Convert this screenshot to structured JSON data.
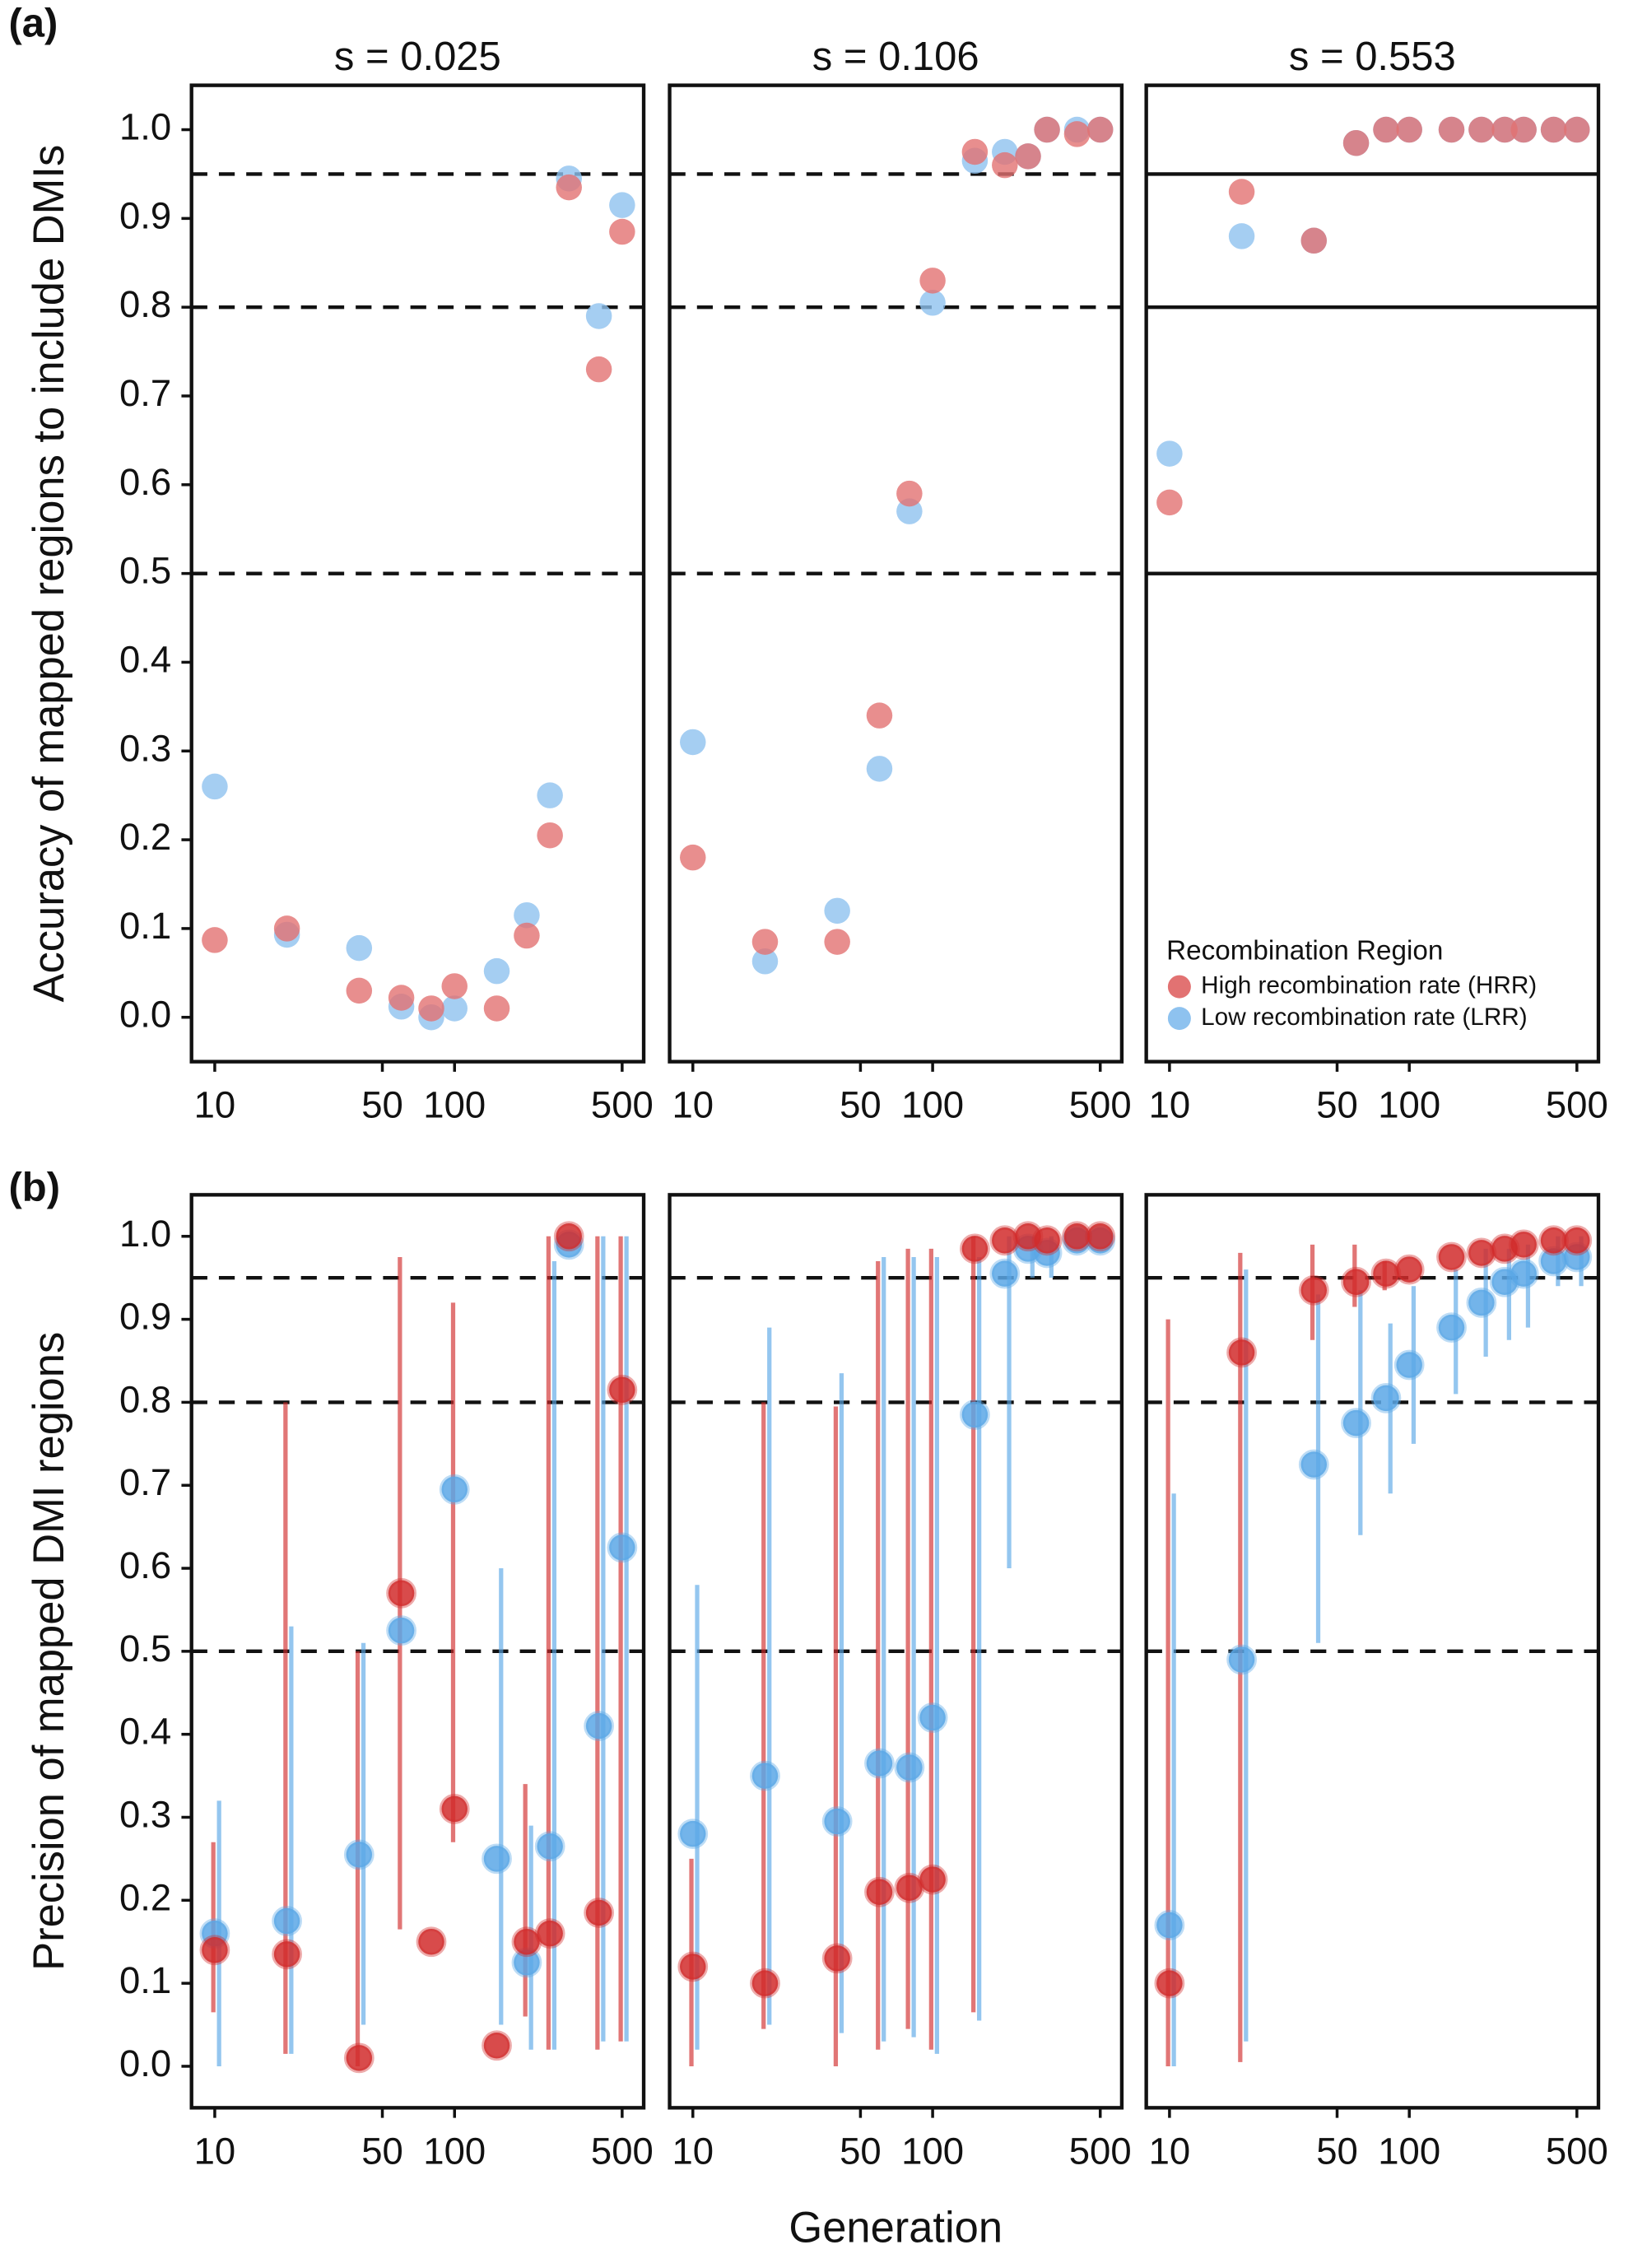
{
  "panel_labels": [
    "(a)",
    "(b)"
  ],
  "xlabel": "Generation",
  "chart_data": [
    {
      "type": "scatter",
      "title": "s = 0.025",
      "ylabel": "Accuracy of mapped regions to include DMIs",
      "log_x": true,
      "xlim": [
        8,
        615
      ],
      "ylim": [
        -0.05,
        1.05
      ],
      "xticks": [
        10,
        50,
        100,
        500
      ],
      "yticks": [
        {
          "value": 0,
          "label": "0.0"
        },
        0.1,
        0.2,
        0.3,
        0.4,
        0.5,
        0.6,
        0.7,
        0.8,
        0.9,
        {
          "value": 1,
          "label": "1.0"
        }
      ],
      "reference_lines": [
        0.95,
        0.8,
        0.5
      ],
      "reference_line_style": "dashed",
      "x": [
        10,
        20,
        40,
        60,
        80,
        100,
        150,
        200,
        250,
        300,
        400,
        500
      ],
      "series": [
        {
          "color": "#8ec2ef",
          "values": [
            0.26,
            0.093,
            0.078,
            0.012,
            0.0,
            0.01,
            0.052,
            0.115,
            0.25,
            0.945,
            0.79,
            0.915
          ]
        },
        {
          "color": "#e27272",
          "values": [
            0.087,
            0.1,
            0.03,
            0.022,
            0.01,
            0.035,
            0.01,
            0.092,
            0.205,
            0.935,
            0.73,
            0.885
          ]
        }
      ]
    },
    {
      "type": "scatter",
      "title": "s = 0.106",
      "log_x": true,
      "xlim": [
        8,
        615
      ],
      "ylim": [
        -0.05,
        1.05
      ],
      "xticks": [
        10,
        50,
        100,
        500
      ],
      "reference_lines": [
        0.95,
        0.8,
        0.5
      ],
      "reference_line_style": "dashed",
      "x": [
        10,
        20,
        40,
        60,
        80,
        100,
        150,
        200,
        250,
        300,
        400,
        500
      ],
      "series": [
        {
          "color": "#8ec2ef",
          "values": [
            0.31,
            0.063,
            0.12,
            0.28,
            0.57,
            0.805,
            0.965,
            0.975,
            0.97,
            1.0,
            1.0,
            1.0
          ]
        },
        {
          "color": "#e27272",
          "values": [
            0.18,
            0.085,
            0.085,
            0.34,
            0.59,
            0.83,
            0.975,
            0.96,
            0.97,
            1.0,
            0.995,
            1.0
          ]
        }
      ]
    },
    {
      "type": "scatter",
      "title": "s = 0.553",
      "log_x": true,
      "xlim": [
        8,
        615
      ],
      "ylim": [
        -0.05,
        1.05
      ],
      "xticks": [
        10,
        50,
        100,
        500
      ],
      "reference_lines": [
        0.95,
        0.8,
        0.5
      ],
      "reference_line_style": "solid",
      "legend": {
        "title": "Recombination Region",
        "position": "lower right"
      },
      "x": [
        10,
        20,
        40,
        60,
        80,
        100,
        150,
        200,
        250,
        300,
        400,
        500
      ],
      "series": [
        {
          "name": "Low recombination rate (LRR)",
          "color": "#8ec2ef",
          "values": [
            0.635,
            0.88,
            0.875,
            0.985,
            1.0,
            1.0,
            1.0,
            1.0,
            1.0,
            1.0,
            1.0,
            1.0
          ]
        },
        {
          "name": "High recombination rate (HRR)",
          "color": "#e27272",
          "values": [
            0.58,
            0.93,
            0.875,
            0.985,
            1.0,
            1.0,
            1.0,
            1.0,
            1.0,
            1.0,
            1.0,
            1.0
          ]
        }
      ]
    },
    {
      "type": "errorbar",
      "ylabel": "Precision of mapped DMI regions",
      "log_x": true,
      "xlim": [
        8,
        615
      ],
      "ylim": [
        -0.05,
        1.05
      ],
      "xticks": [
        10,
        50,
        100,
        500
      ],
      "yticks": [
        {
          "value": 0,
          "label": "0.0"
        },
        0.1,
        0.2,
        0.3,
        0.4,
        0.5,
        0.6,
        0.7,
        0.8,
        0.9,
        {
          "value": 1,
          "label": "1.0"
        }
      ],
      "reference_lines": [
        0.95,
        0.8,
        0.5
      ],
      "reference_line_style": "dashed",
      "x": [
        10,
        20,
        40,
        60,
        80,
        100,
        150,
        200,
        250,
        300,
        400,
        500
      ],
      "series": [
        {
          "color": "#5ba7e6",
          "values": [
            0.16,
            0.175,
            0.255,
            0.525,
            null,
            0.695,
            0.25,
            0.125,
            0.265,
            0.99,
            0.41,
            0.625
          ],
          "lower": [
            0.0,
            0.015,
            0.05,
            null,
            null,
            null,
            0.05,
            0.02,
            0.02,
            null,
            0.03,
            0.03
          ],
          "upper": [
            0.32,
            0.53,
            0.51,
            null,
            null,
            null,
            0.6,
            0.29,
            0.97,
            null,
            1.0,
            1.0
          ]
        },
        {
          "color": "#d12c2c",
          "values": [
            0.14,
            0.135,
            0.01,
            0.57,
            0.15,
            0.31,
            0.025,
            0.15,
            0.16,
            1.0,
            0.185,
            0.815
          ],
          "lower": [
            0.065,
            0.015,
            0.0,
            0.165,
            null,
            0.27,
            null,
            0.06,
            0.02,
            null,
            0.02,
            0.03
          ],
          "upper": [
            0.27,
            0.8,
            0.5,
            0.975,
            null,
            0.92,
            null,
            0.34,
            1.0,
            null,
            1.0,
            1.0
          ]
        }
      ]
    },
    {
      "type": "errorbar",
      "log_x": true,
      "xlim": [
        8,
        615
      ],
      "ylim": [
        -0.05,
        1.05
      ],
      "xticks": [
        10,
        50,
        100,
        500
      ],
      "reference_lines": [
        0.95,
        0.8,
        0.5
      ],
      "reference_line_style": "dashed",
      "x": [
        10,
        20,
        40,
        60,
        80,
        100,
        150,
        200,
        250,
        300,
        400,
        500
      ],
      "series": [
        {
          "color": "#5ba7e6",
          "values": [
            0.28,
            0.35,
            0.295,
            0.365,
            0.36,
            0.42,
            0.785,
            0.955,
            0.985,
            0.98,
            0.995,
            0.995
          ],
          "lower": [
            0.02,
            0.05,
            0.04,
            0.03,
            0.035,
            0.015,
            0.055,
            0.6,
            0.95,
            0.95,
            null,
            null
          ],
          "upper": [
            0.58,
            0.89,
            0.835,
            0.975,
            0.975,
            0.975,
            0.975,
            1.0,
            1.0,
            1.0,
            null,
            null
          ]
        },
        {
          "color": "#d12c2c",
          "values": [
            0.12,
            0.1,
            0.13,
            0.21,
            0.215,
            0.225,
            0.985,
            0.995,
            1.0,
            0.995,
            1.0,
            1.0
          ],
          "lower": [
            0.0,
            0.045,
            0.0,
            0.02,
            0.045,
            0.02,
            0.065,
            null,
            null,
            null,
            null,
            null
          ],
          "upper": [
            0.25,
            0.8,
            0.795,
            0.97,
            0.985,
            0.985,
            1.0,
            null,
            null,
            null,
            null,
            null
          ]
        }
      ]
    },
    {
      "type": "errorbar",
      "log_x": true,
      "xlim": [
        8,
        615
      ],
      "ylim": [
        -0.05,
        1.05
      ],
      "xticks": [
        10,
        50,
        100,
        500
      ],
      "reference_lines": [
        0.95,
        0.8,
        0.5
      ],
      "reference_line_style": "dashed",
      "x": [
        10,
        20,
        40,
        60,
        80,
        100,
        150,
        200,
        250,
        300,
        400,
        500
      ],
      "series": [
        {
          "color": "#5ba7e6",
          "values": [
            0.17,
            0.49,
            0.725,
            0.775,
            0.805,
            0.845,
            0.89,
            0.92,
            0.945,
            0.955,
            0.97,
            0.975
          ],
          "lower": [
            0.0,
            0.03,
            0.51,
            0.64,
            0.69,
            0.75,
            0.81,
            0.855,
            0.875,
            0.89,
            0.94,
            0.94
          ],
          "upper": [
            0.69,
            0.96,
            0.93,
            0.935,
            0.895,
            0.94,
            0.96,
            0.985,
            0.985,
            0.99,
            1.0,
            1.0
          ]
        },
        {
          "color": "#d12c2c",
          "values": [
            0.1,
            0.86,
            0.935,
            0.945,
            0.955,
            0.96,
            0.975,
            0.98,
            0.985,
            0.99,
            0.995,
            0.995
          ],
          "lower": [
            0.0,
            0.005,
            0.875,
            0.915,
            0.935,
            null,
            null,
            null,
            null,
            null,
            null,
            null
          ],
          "upper": [
            0.9,
            0.98,
            0.99,
            0.99,
            0.97,
            null,
            null,
            null,
            null,
            null,
            null,
            null
          ]
        }
      ]
    }
  ]
}
